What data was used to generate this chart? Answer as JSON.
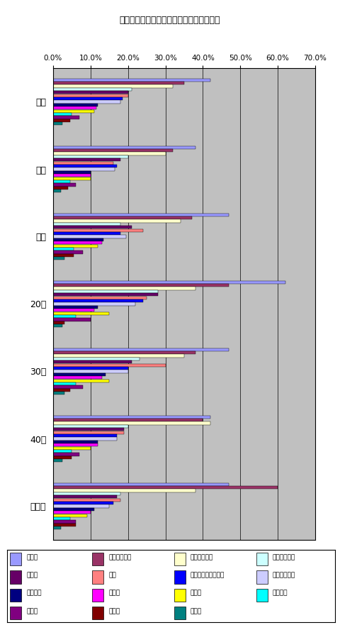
{
  "title": "もっと節約したい、節約できると思う費用",
  "groups": [
    "全体",
    "男性",
    "女性",
    "20代",
    "30代",
    "40代",
    "その他"
  ],
  "categories": [
    "外食費",
    "食料・飲料費",
    "水道・光熱費",
    "携帯電話料金",
    "交際費",
    "衣服",
    "インターネット料金",
    "教育・娯楽費",
    "日用雑貨",
    "保険料",
    "交通費",
    "電化製品",
    "住居費",
    "医療費",
    "その他"
  ],
  "colors": [
    "#9999FF",
    "#993366",
    "#FFFFCC",
    "#CCFFFF",
    "#660066",
    "#FF8080",
    "#0000FF",
    "#CCCCFF",
    "#000080",
    "#FF00FF",
    "#FFFF00",
    "#00FFFF",
    "#800080",
    "#800000",
    "#008080"
  ],
  "data": {
    "全体": [
      42.0,
      35.0,
      32.0,
      21.0,
      20.0,
      20.0,
      18.5,
      18.0,
      12.0,
      11.5,
      11.0,
      5.0,
      7.0,
      4.5,
      2.5
    ],
    "男性": [
      38.0,
      32.0,
      30.0,
      20.0,
      18.0,
      16.0,
      17.0,
      16.5,
      10.0,
      10.0,
      10.0,
      4.5,
      6.0,
      4.0,
      2.0
    ],
    "女性": [
      47.0,
      37.0,
      34.0,
      18.0,
      21.0,
      24.0,
      18.0,
      19.5,
      13.5,
      13.0,
      12.0,
      5.5,
      8.0,
      5.5,
      3.0
    ],
    "20代": [
      62.0,
      47.0,
      38.0,
      28.0,
      28.0,
      25.0,
      24.0,
      22.0,
      12.0,
      11.0,
      15.0,
      6.0,
      10.0,
      3.0,
      2.5
    ],
    "30代": [
      47.0,
      38.0,
      35.0,
      23.0,
      21.0,
      30.0,
      20.0,
      20.0,
      14.0,
      13.0,
      15.0,
      6.0,
      8.0,
      4.5,
      3.0
    ],
    "40代": [
      42.0,
      40.0,
      42.0,
      20.0,
      19.0,
      19.0,
      17.0,
      17.0,
      12.0,
      12.0,
      10.0,
      5.0,
      7.0,
      5.0,
      2.5
    ],
    "その他": [
      47.0,
      60.0,
      38.0,
      18.0,
      17.0,
      18.0,
      16.0,
      15.0,
      11.0,
      10.0,
      9.0,
      4.5,
      6.0,
      6.0,
      2.0
    ]
  },
  "xlim": [
    0,
    70
  ],
  "xticks": [
    0,
    10,
    20,
    30,
    40,
    50,
    60,
    70
  ],
  "xticklabels": [
    "0.0%",
    "10.0%",
    "20.0%",
    "30.0%",
    "40.0%",
    "50.0%",
    "60.0%",
    "70.0%"
  ],
  "background_color": "#C0C0C0",
  "legend_items": [
    [
      "外食費",
      "#9999FF"
    ],
    [
      "食料・飲料費",
      "#993366"
    ],
    [
      "水道・光熱費",
      "#FFFFCC"
    ],
    [
      "携帯電話料金",
      "#CCFFFF"
    ],
    [
      "交際費",
      "#660066"
    ],
    [
      "衣服",
      "#FF8080"
    ],
    [
      "インターネット料金",
      "#0000FF"
    ],
    [
      "教育・娯楽費",
      "#CCCCFF"
    ],
    [
      "日用雑貨",
      "#000080"
    ],
    [
      "保険料",
      "#FF00FF"
    ],
    [
      "交通費",
      "#FFFF00"
    ],
    [
      "電化製品",
      "#00FFFF"
    ],
    [
      "住居費",
      "#800080"
    ],
    [
      "医療費",
      "#800000"
    ],
    [
      "その他",
      "#008080"
    ]
  ]
}
